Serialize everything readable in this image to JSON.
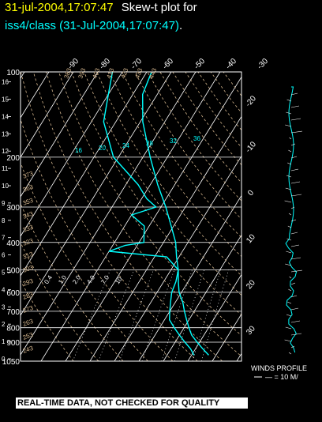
{
  "header": {
    "line1_date": "31-jul-2004,17:07:47",
    "line1_rest": "Skew-t plot for",
    "line2_site": "iss4/class (31-Jul-2004,17:07:47)",
    "line2_end": "."
  },
  "winds": {
    "label": "WINDS PROFILE",
    "scale": "— = 10 M/"
  },
  "footer": {
    "banner": "REAL-TIME DATA, NOT CHECKED FOR QUALITY"
  },
  "colors": {
    "temp_trace": "#00ffff",
    "dewpoint_trace": "#00ffff",
    "isotherm": "#ffffff",
    "dry_adiabat": "#d2b48c",
    "mixing_ratio": "#ffffff",
    "title_date": "#ffff00",
    "title_site": "#00ffff"
  },
  "chart_data": {
    "type": "line",
    "subtype": "skew-t log-p",
    "title": "31-jul-2004,17:07:47  Skew-t plot for iss4/class (31-Jul-2004,17:07:47).",
    "pressure_ticks_mb": [
      "100",
      "200",
      "300",
      "400",
      "500",
      "600",
      "700",
      "800",
      "900",
      "1050"
    ],
    "height_ticks_km": [
      "0",
      "1",
      "2",
      "3",
      "4",
      "5",
      "6",
      "7",
      "8",
      "9",
      "10",
      "11",
      "12",
      "13",
      "14",
      "15",
      "16"
    ],
    "isotherm_top_labels_c": [
      "-90",
      "-80",
      "-70",
      "-60",
      "-50",
      "-40",
      "-30"
    ],
    "isotherm_right_labels_c": [
      "-20",
      "-10",
      "0",
      "10",
      "20",
      "30"
    ],
    "dry_adiabat_labels_k": [
      "243",
      "253",
      "263",
      "273",
      "283",
      "293",
      "303",
      "313",
      "323",
      "333",
      "343",
      "353",
      "363",
      "373",
      "383",
      "393",
      "403",
      "413",
      "423",
      "433",
      "443",
      "453"
    ],
    "mixing_ratio_labels": [
      "0.4",
      "1.0",
      "2.0",
      "4.0",
      "7.0",
      "10",
      "16",
      "20",
      "24",
      "28",
      "32",
      "36"
    ],
    "temperature_c": [
      {
        "p": 1000,
        "t": 27
      },
      {
        "p": 950,
        "t": 23
      },
      {
        "p": 900,
        "t": 19
      },
      {
        "p": 850,
        "t": 15
      },
      {
        "p": 800,
        "t": 12
      },
      {
        "p": 750,
        "t": 9
      },
      {
        "p": 700,
        "t": 6
      },
      {
        "p": 650,
        "t": 3
      },
      {
        "p": 600,
        "t": -1
      },
      {
        "p": 550,
        "t": -4
      },
      {
        "p": 500,
        "t": -7
      },
      {
        "p": 450,
        "t": -11
      },
      {
        "p": 400,
        "t": -15
      },
      {
        "p": 350,
        "t": -21
      },
      {
        "p": 300,
        "t": -28
      },
      {
        "p": 250,
        "t": -37
      },
      {
        "p": 200,
        "t": -47
      },
      {
        "p": 150,
        "t": -59
      },
      {
        "p": 120,
        "t": -66
      },
      {
        "p": 100,
        "t": -68
      }
    ],
    "dewpoint_c": [
      {
        "p": 1000,
        "t": 21
      },
      {
        "p": 950,
        "t": 18
      },
      {
        "p": 900,
        "t": 14
      },
      {
        "p": 850,
        "t": 10
      },
      {
        "p": 800,
        "t": 6
      },
      {
        "p": 750,
        "t": 2
      },
      {
        "p": 700,
        "t": 0
      },
      {
        "p": 650,
        "t": -2
      },
      {
        "p": 600,
        "t": -4
      },
      {
        "p": 550,
        "t": -5
      },
      {
        "p": 500,
        "t": -7
      },
      {
        "p": 450,
        "t": -15
      },
      {
        "p": 430,
        "t": -40
      },
      {
        "p": 410,
        "t": -35
      },
      {
        "p": 400,
        "t": -28
      },
      {
        "p": 350,
        "t": -32
      },
      {
        "p": 320,
        "t": -40
      },
      {
        "p": 300,
        "t": -32
      },
      {
        "p": 280,
        "t": -38
      },
      {
        "p": 250,
        "t": -45
      },
      {
        "p": 200,
        "t": -62
      },
      {
        "p": 150,
        "t": -75
      },
      {
        "p": 120,
        "t": -80
      },
      {
        "p": 100,
        "t": -84
      }
    ],
    "xlim_c": [
      -40,
      40
    ],
    "ylim_mb": [
      1050,
      100
    ],
    "grid": true
  }
}
